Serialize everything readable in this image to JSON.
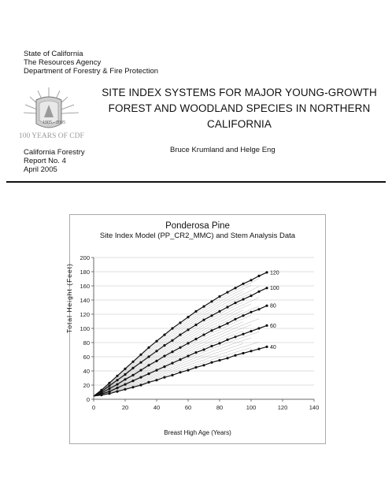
{
  "header": {
    "agency_lines": [
      "State of California",
      "The Resources Agency",
      "Department of Forestry & Fire Protection"
    ],
    "seal_text": "100 YEARS OF CDF",
    "seal_years": "1905 - 2005",
    "title_lines": [
      "SITE INDEX SYSTEMS FOR MAJOR YOUNG-GROWTH",
      "FOREST AND WOODLAND SPECIES IN NORTHERN",
      "CALIFORNIA"
    ],
    "authors": "Bruce Krumland and Helge Eng",
    "report_lines": [
      "California Forestry",
      "Report No. 4",
      "April 2005"
    ]
  },
  "chart_data": {
    "type": "line",
    "title": "Ponderosa Pine",
    "subtitle": "Site Index Model (PP_CR2_MMC) and Stem Analysis Data",
    "xlabel": "Breast High Age (Years)",
    "ylabel": "Total Height (Feet)",
    "xlim": [
      0,
      140
    ],
    "ylim": [
      0,
      200
    ],
    "xticks": [
      0,
      20,
      40,
      60,
      80,
      100,
      120,
      140
    ],
    "yticks": [
      0,
      20,
      40,
      60,
      80,
      100,
      120,
      140,
      160,
      180,
      200
    ],
    "x": [
      0,
      5,
      10,
      15,
      20,
      25,
      30,
      35,
      40,
      45,
      50,
      55,
      60,
      65,
      70,
      75,
      80,
      85,
      90,
      95,
      100,
      105,
      110
    ],
    "series": [
      {
        "name": "120",
        "values": [
          4.5,
          13,
          23,
          33,
          43,
          53,
          63,
          73,
          82,
          91,
          100,
          108,
          116,
          124,
          131,
          138,
          145,
          151,
          157,
          163,
          168,
          174,
          179
        ]
      },
      {
        "name": "100",
        "values": [
          4.5,
          11,
          19,
          27,
          35,
          44,
          52,
          60,
          68,
          76,
          83,
          91,
          98,
          105,
          112,
          118,
          124,
          130,
          136,
          141,
          146,
          152,
          157
        ]
      },
      {
        "name": "80",
        "values": [
          4.5,
          9,
          15,
          21,
          28,
          34,
          41,
          48,
          54,
          61,
          67,
          73,
          79,
          85,
          91,
          97,
          102,
          107,
          113,
          118,
          123,
          127,
          132
        ]
      },
      {
        "name": "60",
        "values": [
          4.5,
          7.5,
          11,
          16,
          21,
          26,
          31,
          36,
          41,
          46,
          51,
          56,
          61,
          66,
          70,
          75,
          79,
          84,
          88,
          92,
          96,
          100,
          104
        ]
      },
      {
        "name": "40",
        "values": [
          4.5,
          6,
          8,
          11,
          14,
          17,
          20,
          24,
          27,
          31,
          34,
          38,
          41,
          45,
          48,
          52,
          55,
          58,
          62,
          65,
          68,
          71,
          74
        ]
      }
    ],
    "series_color": "#111111",
    "stem_data_color": "#9a9a9a",
    "grid": true,
    "legend": "none"
  }
}
